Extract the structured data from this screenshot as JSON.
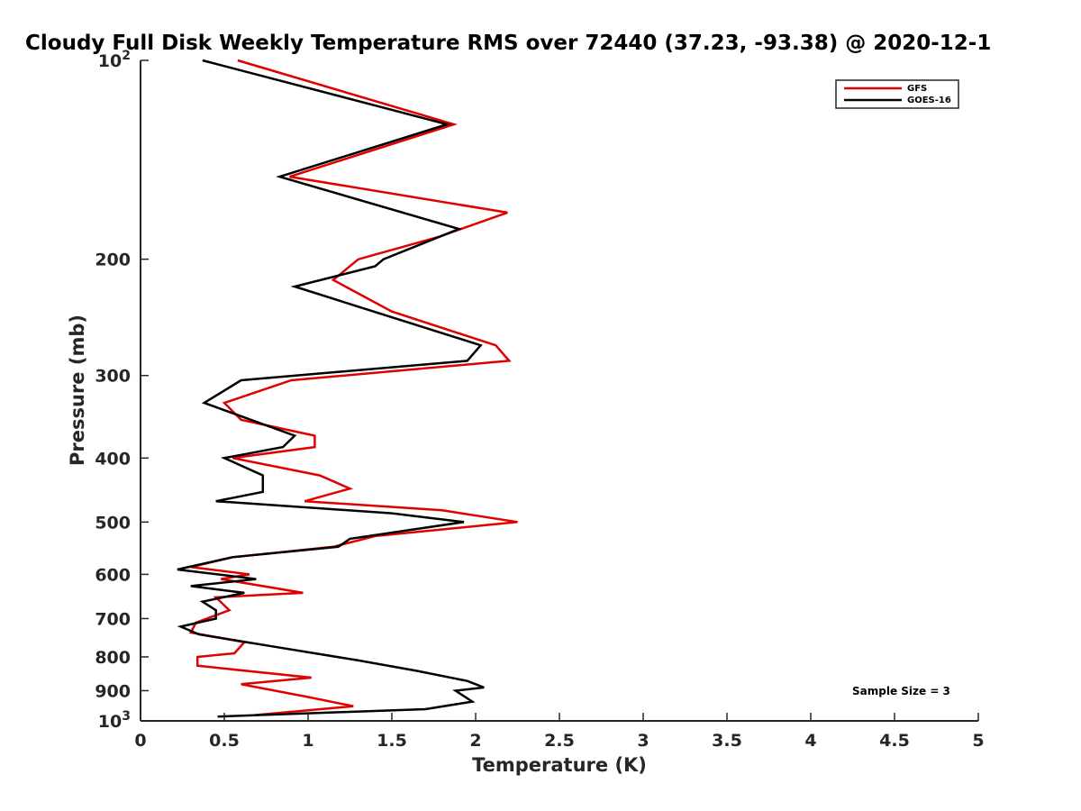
{
  "chart_data": {
    "type": "line",
    "title": "Cloudy Full Disk Weekly Temperature RMS over 72440 (37.23, -93.38) @ 2020-12-1",
    "xlabel": "Temperature (K)",
    "ylabel": "Pressure (mb)",
    "xlim": [
      0,
      5
    ],
    "ylim": [
      100,
      1000
    ],
    "y_scale": "log",
    "y_reversed": true,
    "grid": false,
    "legend_position": "top-right",
    "x_ticks": [
      {
        "value": 0,
        "label": "0"
      },
      {
        "value": 0.5,
        "label": "0.5"
      },
      {
        "value": 1,
        "label": "1"
      },
      {
        "value": 1.5,
        "label": "1.5"
      },
      {
        "value": 2,
        "label": "2"
      },
      {
        "value": 2.5,
        "label": "2.5"
      },
      {
        "value": 3,
        "label": "3"
      },
      {
        "value": 3.5,
        "label": "3.5"
      },
      {
        "value": 4,
        "label": "4"
      },
      {
        "value": 4.5,
        "label": "4.5"
      },
      {
        "value": 5,
        "label": "5"
      }
    ],
    "y_ticks": [
      {
        "value": 100,
        "label": "10",
        "sup": "2"
      },
      {
        "value": 200,
        "label": "200"
      },
      {
        "value": 300,
        "label": "300"
      },
      {
        "value": 400,
        "label": "400"
      },
      {
        "value": 500,
        "label": "500"
      },
      {
        "value": 600,
        "label": "600"
      },
      {
        "value": 700,
        "label": "700"
      },
      {
        "value": 800,
        "label": "800"
      },
      {
        "value": 900,
        "label": "900"
      },
      {
        "value": 1000,
        "label": "10",
        "sup": "3"
      }
    ],
    "series": [
      {
        "name": "GFS",
        "color": "#e00000",
        "points": [
          [
            0.58,
            100
          ],
          [
            1.87,
            125
          ],
          [
            0.89,
            150
          ],
          [
            2.19,
            170
          ],
          [
            1.78,
            185
          ],
          [
            1.3,
            200
          ],
          [
            1.15,
            215
          ],
          [
            1.5,
            240
          ],
          [
            2.12,
            270
          ],
          [
            2.2,
            285
          ],
          [
            0.9,
            305
          ],
          [
            0.5,
            330
          ],
          [
            0.6,
            350
          ],
          [
            1.04,
            370
          ],
          [
            1.04,
            385
          ],
          [
            0.55,
            400
          ],
          [
            1.07,
            425
          ],
          [
            1.25,
            445
          ],
          [
            0.98,
            465
          ],
          [
            1.8,
            480
          ],
          [
            2.25,
            500
          ],
          [
            1.4,
            525
          ],
          [
            1.15,
            545
          ],
          [
            0.55,
            565
          ],
          [
            0.3,
            585
          ],
          [
            0.65,
            600
          ],
          [
            0.48,
            610
          ],
          [
            0.97,
            640
          ],
          [
            0.45,
            650
          ],
          [
            0.53,
            680
          ],
          [
            0.33,
            710
          ],
          [
            0.3,
            735
          ],
          [
            0.62,
            760
          ],
          [
            0.56,
            790
          ],
          [
            0.34,
            800
          ],
          [
            0.34,
            825
          ],
          [
            1.02,
            860
          ],
          [
            0.6,
            880
          ],
          [
            1.0,
            920
          ],
          [
            1.27,
            950
          ],
          [
            0.68,
            980
          ]
        ]
      },
      {
        "name": "GOES-16",
        "color": "#000000",
        "points": [
          [
            0.37,
            100
          ],
          [
            1.83,
            125
          ],
          [
            0.83,
            150
          ],
          [
            1.9,
            180
          ],
          [
            1.45,
            200
          ],
          [
            1.4,
            205
          ],
          [
            0.92,
            220
          ],
          [
            2.03,
            270
          ],
          [
            1.95,
            285
          ],
          [
            0.6,
            305
          ],
          [
            0.38,
            330
          ],
          [
            0.92,
            370
          ],
          [
            0.85,
            385
          ],
          [
            0.5,
            400
          ],
          [
            0.73,
            425
          ],
          [
            0.73,
            450
          ],
          [
            0.45,
            465
          ],
          [
            1.5,
            485
          ],
          [
            1.93,
            500
          ],
          [
            1.25,
            530
          ],
          [
            1.18,
            545
          ],
          [
            0.55,
            565
          ],
          [
            0.22,
            590
          ],
          [
            0.69,
            610
          ],
          [
            0.3,
            625
          ],
          [
            0.62,
            640
          ],
          [
            0.37,
            660
          ],
          [
            0.45,
            680
          ],
          [
            0.45,
            700
          ],
          [
            0.24,
            720
          ],
          [
            0.35,
            740
          ],
          [
            0.77,
            770
          ],
          [
            1.3,
            810
          ],
          [
            1.65,
            840
          ],
          [
            1.95,
            870
          ],
          [
            2.05,
            890
          ],
          [
            1.88,
            900
          ],
          [
            1.98,
            935
          ],
          [
            1.7,
            960
          ],
          [
            1.2,
            970
          ],
          [
            0.46,
            985
          ]
        ]
      }
    ],
    "annotation": "Sample Size = 3"
  }
}
